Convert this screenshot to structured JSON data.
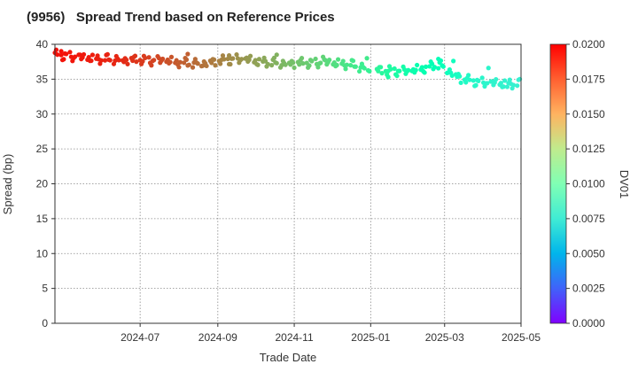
{
  "chart_data": {
    "type": "scatter",
    "title": "(9956)   Spread Trend based on Reference Prices",
    "xlabel": "Trade Date",
    "ylabel": "Spread (bp)",
    "colorbar_label": "DV01",
    "ylim": [
      0,
      40
    ],
    "yticks": [
      0,
      5,
      10,
      15,
      20,
      25,
      30,
      35,
      40
    ],
    "ytick_labels": [
      "0",
      "5",
      "10",
      "15",
      "20",
      "25",
      "30",
      "35",
      "40"
    ],
    "xlim": [
      "2024-04-24",
      "2025-05-01"
    ],
    "xticks": [
      "2024-07-01",
      "2024-09-01",
      "2024-11-01",
      "2025-01-01",
      "2025-03-01",
      "2025-05-01"
    ],
    "xtick_labels": [
      "2024-07",
      "2024-09",
      "2024-11",
      "2025-01",
      "2025-03",
      "2025-05"
    ],
    "clim": [
      0,
      0.02
    ],
    "cticks": [
      0.0,
      0.0025,
      0.005,
      0.0075,
      0.01,
      0.0125,
      0.015,
      0.0175,
      0.02
    ],
    "ctick_labels": [
      "0.0000",
      "0.0025",
      "0.0050",
      "0.0075",
      "0.0100",
      "0.0125",
      "0.0150",
      "0.0175",
      "0.0200"
    ],
    "grid": true,
    "colormap": "rainbow",
    "anchors": [
      {
        "x": "2024-04-24",
        "y": 38.5,
        "dv01": 0.0196
      },
      {
        "x": "2024-05-15",
        "y": 38.0,
        "dv01": 0.0194
      },
      {
        "x": "2024-06-15",
        "y": 37.9,
        "dv01": 0.019
      },
      {
        "x": "2024-07-15",
        "y": 37.6,
        "dv01": 0.0182
      },
      {
        "x": "2024-08-15",
        "y": 37.3,
        "dv01": 0.0172
      },
      {
        "x": "2024-09-15",
        "y": 37.8,
        "dv01": 0.0162
      },
      {
        "x": "2024-10-15",
        "y": 37.4,
        "dv01": 0.0152
      },
      {
        "x": "2024-11-15",
        "y": 37.3,
        "dv01": 0.014
      },
      {
        "x": "2024-12-15",
        "y": 37.2,
        "dv01": 0.0128
      },
      {
        "x": "2025-01-05",
        "y": 36.3,
        "dv01": 0.0118
      },
      {
        "x": "2025-02-01",
        "y": 36.0,
        "dv01": 0.0106
      },
      {
        "x": "2025-02-25",
        "y": 37.2,
        "dv01": 0.0098
      },
      {
        "x": "2025-03-15",
        "y": 35.0,
        "dv01": 0.0088
      },
      {
        "x": "2025-04-05",
        "y": 34.3,
        "dv01": 0.0082
      },
      {
        "x": "2025-04-30",
        "y": 34.4,
        "dv01": 0.0078
      }
    ],
    "highlights": [
      {
        "x": "2024-04-29",
        "y": 39.0,
        "dv01": 0.0196
      },
      {
        "x": "2024-08-08",
        "y": 38.6,
        "dv01": 0.0176
      },
      {
        "x": "2024-09-10",
        "y": 38.4,
        "dv01": 0.0163
      },
      {
        "x": "2024-10-18",
        "y": 38.5,
        "dv01": 0.0151
      },
      {
        "x": "2024-11-24",
        "y": 38.2,
        "dv01": 0.0138
      },
      {
        "x": "2024-12-29",
        "y": 38.0,
        "dv01": 0.0126
      },
      {
        "x": "2025-02-24",
        "y": 37.9,
        "dv01": 0.0098
      },
      {
        "x": "2025-03-08",
        "y": 37.6,
        "dv01": 0.0093
      },
      {
        "x": "2025-04-05",
        "y": 36.6,
        "dv01": 0.0083
      },
      {
        "x": "2025-01-15",
        "y": 35.3,
        "dv01": 0.0112
      },
      {
        "x": "2025-04-20",
        "y": 33.9,
        "dv01": 0.0079
      }
    ]
  }
}
